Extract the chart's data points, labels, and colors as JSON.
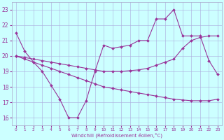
{
  "line1_x": [
    0,
    1,
    2,
    3,
    4,
    5,
    6,
    7,
    8,
    9,
    10,
    11,
    12,
    13,
    14,
    15,
    16,
    17,
    18,
    19,
    20,
    21,
    22,
    23
  ],
  "line1_y": [
    21.5,
    20.3,
    19.6,
    19.0,
    18.1,
    17.2,
    16.0,
    16.0,
    17.1,
    19.0,
    20.7,
    20.5,
    20.6,
    20.7,
    21.0,
    21.0,
    22.4,
    22.4,
    23.0,
    21.3,
    21.3,
    21.3,
    19.7,
    18.8
  ],
  "line2_x": [
    0,
    1,
    2,
    3,
    4,
    5,
    6,
    7,
    8,
    9,
    10,
    11,
    12,
    13,
    14,
    15,
    16,
    17,
    18,
    19,
    20,
    21,
    22,
    23
  ],
  "line2_y": [
    20.0,
    19.9,
    19.8,
    19.7,
    19.6,
    19.5,
    19.4,
    19.3,
    19.2,
    19.1,
    19.0,
    19.0,
    19.0,
    19.05,
    19.1,
    19.2,
    19.4,
    19.6,
    19.8,
    20.5,
    21.0,
    21.2,
    21.3,
    21.3
  ],
  "line3_x": [
    0,
    1,
    2,
    3,
    4,
    5,
    6,
    7,
    8,
    9,
    10,
    11,
    12,
    13,
    14,
    15,
    16,
    17,
    18,
    19,
    20,
    21,
    22,
    23
  ],
  "line3_y": [
    20.0,
    19.8,
    19.6,
    19.4,
    19.2,
    19.0,
    18.8,
    18.6,
    18.4,
    18.2,
    18.0,
    17.9,
    17.8,
    17.7,
    17.6,
    17.5,
    17.4,
    17.3,
    17.2,
    17.15,
    17.1,
    17.1,
    17.1,
    17.2
  ],
  "color": "#993399",
  "bg_color": "#ccffff",
  "xlabel": "Windchill (Refroidissement éolien,°C)",
  "ylim": [
    15.5,
    23.5
  ],
  "xlim": [
    -0.5,
    23.5
  ],
  "yticks": [
    16,
    17,
    18,
    19,
    20,
    21,
    22,
    23
  ],
  "xticks": [
    0,
    1,
    2,
    3,
    4,
    5,
    6,
    7,
    8,
    9,
    10,
    11,
    12,
    13,
    14,
    15,
    16,
    17,
    18,
    19,
    20,
    21,
    22,
    23
  ]
}
